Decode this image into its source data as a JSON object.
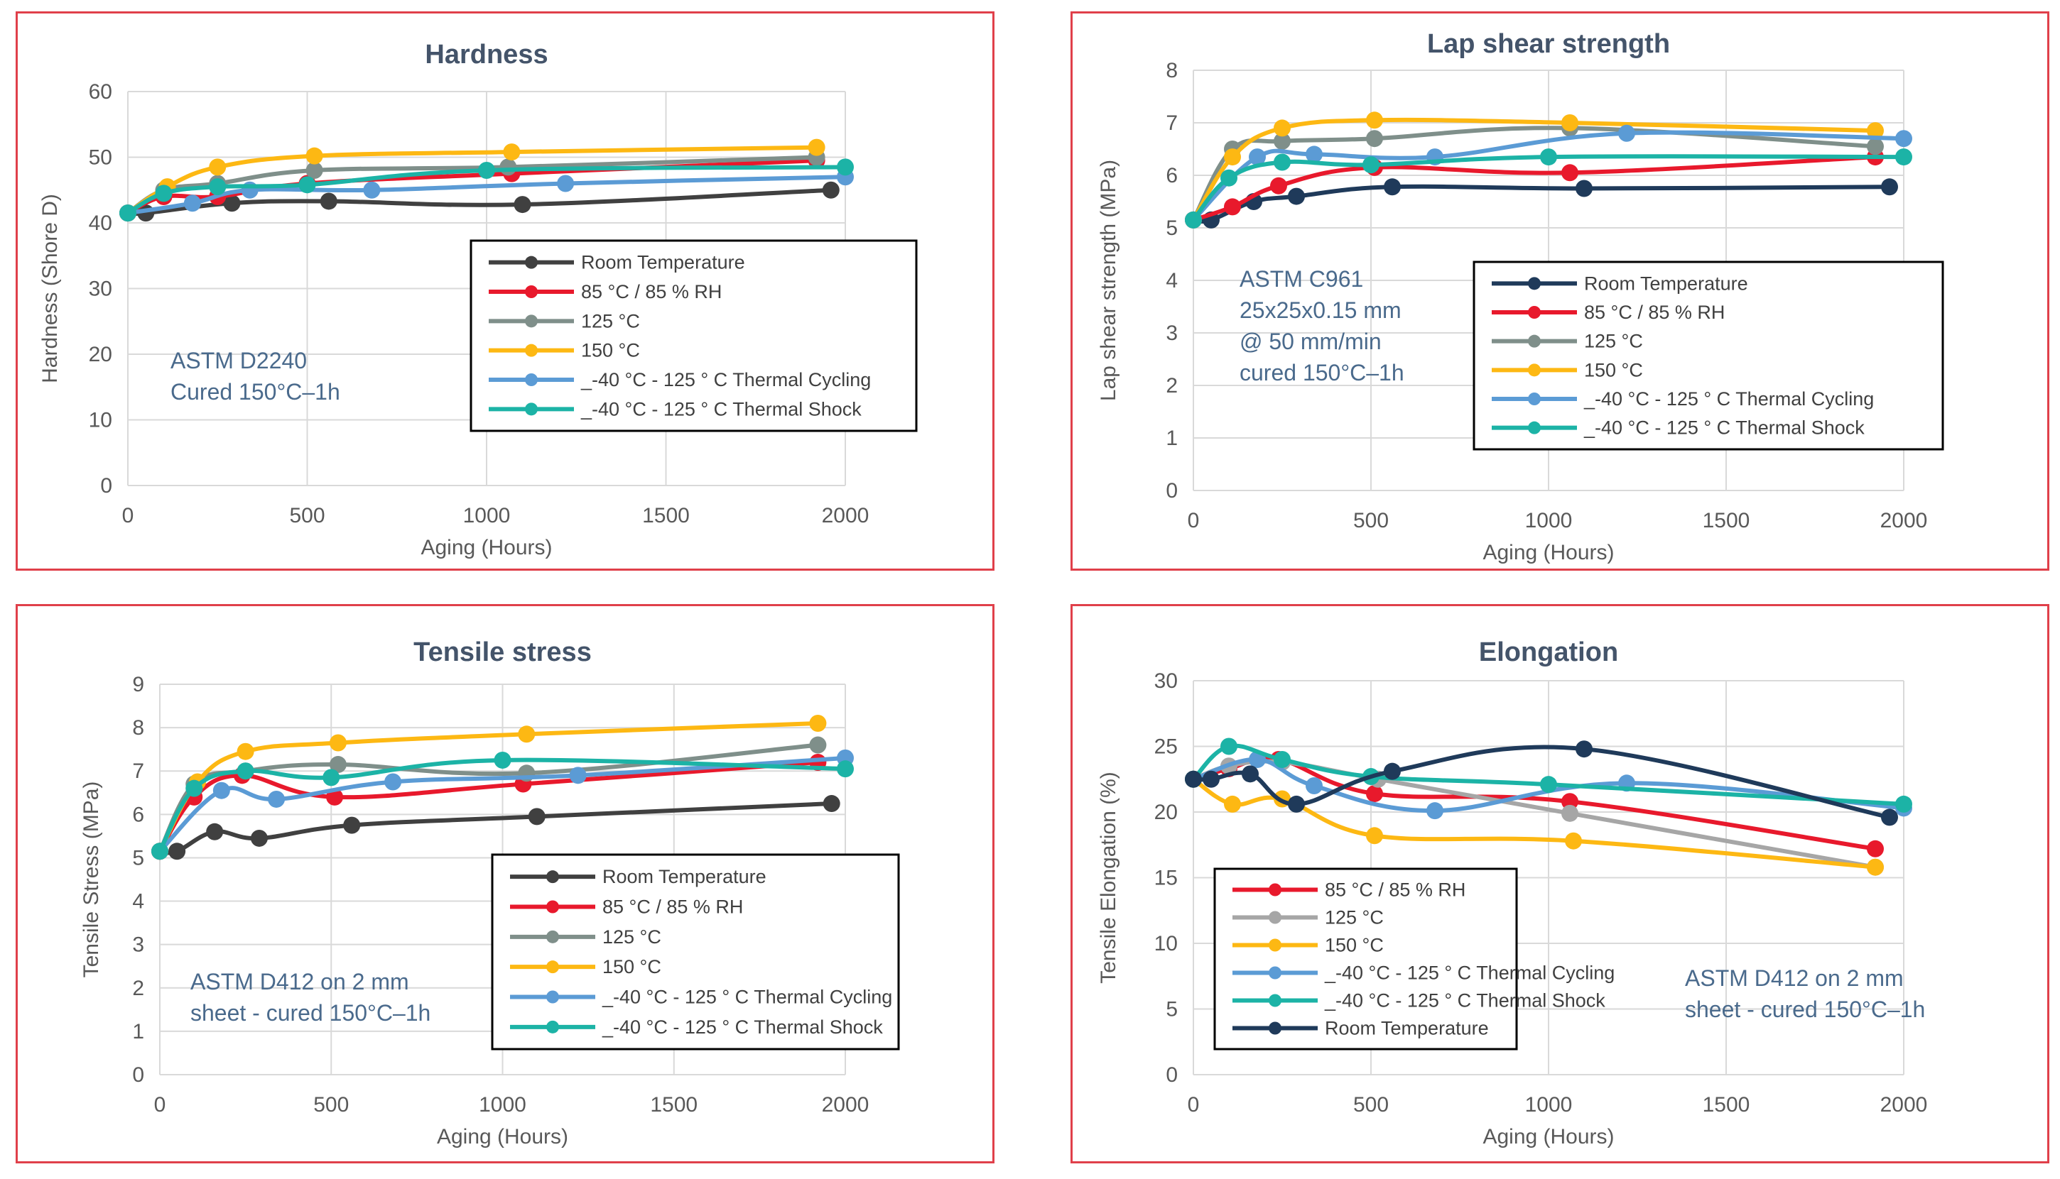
{
  "chart_data": [
    {
      "type": "line",
      "title": "Hardness",
      "xlabel": "Aging (Hours)",
      "ylabel": "Hardness (Shore D)",
      "xlim": [
        0,
        2000
      ],
      "ylim": [
        0,
        60
      ],
      "xticks": [
        "0",
        "500",
        "1000",
        "1500",
        "2000"
      ],
      "yticks": [
        "0",
        "10",
        "20",
        "30",
        "40",
        "50",
        "60"
      ],
      "annotation": [
        "ASTM D2240",
        "Cured 150°C–1h"
      ],
      "grid": true,
      "legend_position": "center-right",
      "series": [
        {
          "name": "Room Temperature",
          "color": "#404040",
          "x": [
            0,
            50,
            290,
            560,
            1100,
            1960
          ],
          "y": [
            41.5,
            41.5,
            43,
            43.3,
            42.8,
            45
          ]
        },
        {
          "name": "85 °C / 85 % RH",
          "color": "#e8192c",
          "x": [
            0,
            100,
            250,
            500,
            1070,
            1920
          ],
          "y": [
            41.5,
            44,
            44,
            46,
            47.5,
            49.5
          ]
        },
        {
          "name": "125 °C",
          "color": "#7f8f8a",
          "x": [
            0,
            100,
            250,
            520,
            1060,
            1920
          ],
          "y": [
            41.5,
            45,
            46,
            48,
            48.5,
            50
          ]
        },
        {
          "name": "150 °C",
          "color": "#fdb813",
          "x": [
            0,
            110,
            250,
            520,
            1070,
            1920
          ],
          "y": [
            41.5,
            45.5,
            48.5,
            50.2,
            50.8,
            51.5
          ]
        },
        {
          "name": "_-40 °C - 125 ° C Thermal Cycling",
          "color": "#5b9bd5",
          "x": [
            0,
            180,
            340,
            680,
            1220,
            2000
          ],
          "y": [
            41.5,
            43,
            45,
            45,
            46,
            47
          ]
        },
        {
          "name": "_-40 °C - 125 ° C Thermal Shock",
          "color": "#1cb3a6",
          "x": [
            0,
            100,
            250,
            500,
            1000,
            2000
          ],
          "y": [
            41.5,
            44.5,
            45.5,
            45.8,
            48,
            48.5
          ]
        }
      ]
    },
    {
      "type": "line",
      "title": "Lap shear strength",
      "xlabel": "Aging (Hours)",
      "ylabel": "Lap shear strength (MPa)",
      "xlim": [
        0,
        2000
      ],
      "ylim": [
        0,
        8
      ],
      "xticks": [
        "0",
        "500",
        "1000",
        "1500",
        "2000"
      ],
      "yticks": [
        "0",
        "1",
        "2",
        "3",
        "4",
        "5",
        "6",
        "7",
        "8"
      ],
      "annotation": [
        "ASTM C961",
        "25x25x0.15 mm",
        "@ 50 mm/min",
        "cured 150°C–1h"
      ],
      "grid": true,
      "legend_position": "center-right",
      "series": [
        {
          "name": "Room Temperature",
          "color": "#1f3a5a",
          "x": [
            0,
            50,
            170,
            290,
            560,
            1100,
            1960
          ],
          "y": [
            5.15,
            5.15,
            5.5,
            5.6,
            5.78,
            5.75,
            5.78
          ]
        },
        {
          "name": "85 °C / 85 % RH",
          "color": "#e8192c",
          "x": [
            0,
            110,
            240,
            510,
            1060,
            1920
          ],
          "y": [
            5.15,
            5.4,
            5.8,
            6.15,
            6.05,
            6.35
          ]
        },
        {
          "name": "125 °C",
          "color": "#7f8f8a",
          "x": [
            0,
            110,
            250,
            510,
            1060,
            1920
          ],
          "y": [
            5.15,
            6.5,
            6.65,
            6.7,
            6.9,
            6.55
          ]
        },
        {
          "name": "150 °C",
          "color": "#fdb813",
          "x": [
            0,
            110,
            250,
            510,
            1060,
            1920
          ],
          "y": [
            5.15,
            6.35,
            6.9,
            7.05,
            7.0,
            6.85
          ]
        },
        {
          "name": "_-40 °C - 125 ° C Thermal Cycling",
          "color": "#5b9bd5",
          "x": [
            0,
            180,
            340,
            680,
            1220,
            2000
          ],
          "y": [
            5.15,
            6.35,
            6.4,
            6.35,
            6.8,
            6.7
          ]
        },
        {
          "name": "_-40 °C - 125 ° C Thermal Shock",
          "color": "#1cb3a6",
          "x": [
            0,
            100,
            250,
            500,
            1000,
            2000
          ],
          "y": [
            5.15,
            5.95,
            6.25,
            6.2,
            6.35,
            6.35
          ]
        }
      ]
    },
    {
      "type": "line",
      "title": "Tensile stress",
      "xlabel": "Aging (Hours)",
      "ylabel": "Tensile Stress (MPa)",
      "xlim": [
        0,
        2000
      ],
      "ylim": [
        0,
        9
      ],
      "xticks": [
        "0",
        "500",
        "1000",
        "1500",
        "2000"
      ],
      "yticks": [
        "0",
        "1",
        "2",
        "3",
        "4",
        "5",
        "6",
        "7",
        "8",
        "9"
      ],
      "annotation": [
        "ASTM D412 on 2 mm",
        "sheet - cured 150°C–1h"
      ],
      "grid": true,
      "legend_position": "bottom-right",
      "series": [
        {
          "name": "Room Temperature",
          "color": "#404040",
          "x": [
            0,
            50,
            160,
            290,
            560,
            1100,
            1960
          ],
          "y": [
            5.15,
            5.15,
            5.6,
            5.45,
            5.75,
            5.95,
            6.25
          ]
        },
        {
          "name": "85 °C / 85 % RH",
          "color": "#e8192c",
          "x": [
            0,
            100,
            240,
            510,
            1060,
            1920
          ],
          "y": [
            5.15,
            6.4,
            6.9,
            6.4,
            6.7,
            7.2
          ]
        },
        {
          "name": "125 °C",
          "color": "#7f8f8a",
          "x": [
            0,
            100,
            250,
            520,
            1070,
            1920
          ],
          "y": [
            5.15,
            6.7,
            7.0,
            7.15,
            6.95,
            7.6
          ]
        },
        {
          "name": "150 °C",
          "color": "#fdb813",
          "x": [
            0,
            110,
            250,
            520,
            1070,
            1920
          ],
          "y": [
            5.15,
            6.75,
            7.45,
            7.65,
            7.85,
            8.1
          ]
        },
        {
          "name": "_-40 °C - 125 ° C Thermal Cycling",
          "color": "#5b9bd5",
          "x": [
            0,
            180,
            340,
            680,
            1220,
            2000
          ],
          "y": [
            5.15,
            6.55,
            6.35,
            6.75,
            6.9,
            7.3
          ]
        },
        {
          "name": "_-40 °C - 125 ° C Thermal Shock",
          "color": "#1cb3a6",
          "x": [
            0,
            100,
            250,
            500,
            1000,
            2000
          ],
          "y": [
            5.15,
            6.6,
            7.0,
            6.85,
            7.25,
            7.05
          ]
        }
      ]
    },
    {
      "type": "line",
      "title": "Elongation",
      "xlabel": "Aging (Hours)",
      "ylabel": "Tensile Elongation (%)",
      "xlim": [
        0,
        2000
      ],
      "ylim": [
        0,
        30
      ],
      "xticks": [
        "0",
        "500",
        "1000",
        "1500",
        "2000"
      ],
      "yticks": [
        "0",
        "5",
        "10",
        "15",
        "20",
        "25",
        "30"
      ],
      "annotation": [
        "ASTM D412 on 2 mm",
        "sheet - cured 150°C–1h"
      ],
      "grid": true,
      "legend_position": "bottom-left",
      "series": [
        {
          "name": "85 °C / 85 % RH",
          "color": "#e8192c",
          "x": [
            0,
            100,
            240,
            510,
            1060,
            1920
          ],
          "y": [
            22.5,
            23.3,
            24.0,
            21.4,
            20.8,
            17.2
          ]
        },
        {
          "name": "125 °C",
          "color": "#a6a6a6",
          "x": [
            0,
            100,
            250,
            520,
            1060,
            1920
          ],
          "y": [
            22.5,
            23.5,
            23.8,
            22.5,
            19.9,
            15.8
          ]
        },
        {
          "name": "150 °C",
          "color": "#fdb813",
          "x": [
            0,
            110,
            250,
            510,
            1070,
            1920
          ],
          "y": [
            22.5,
            20.6,
            21.0,
            18.2,
            17.8,
            15.8
          ]
        },
        {
          "name": "_-40 °C - 125 ° C Thermal Cycling",
          "color": "#5b9bd5",
          "x": [
            0,
            180,
            340,
            680,
            1220,
            2000
          ],
          "y": [
            22.5,
            24.0,
            22.0,
            20.1,
            22.2,
            20.3
          ]
        },
        {
          "name": "_-40 °C - 125 ° C Thermal Shock",
          "color": "#1cb3a6",
          "x": [
            0,
            100,
            250,
            500,
            1000,
            2000
          ],
          "y": [
            22.5,
            25.0,
            24.0,
            22.7,
            22.1,
            20.6
          ]
        },
        {
          "name": "Room Temperature",
          "color": "#1f3a5a",
          "x": [
            0,
            50,
            160,
            290,
            560,
            1100,
            1960
          ],
          "y": [
            22.5,
            22.5,
            22.9,
            20.6,
            23.1,
            24.8,
            19.6
          ]
        }
      ]
    }
  ]
}
